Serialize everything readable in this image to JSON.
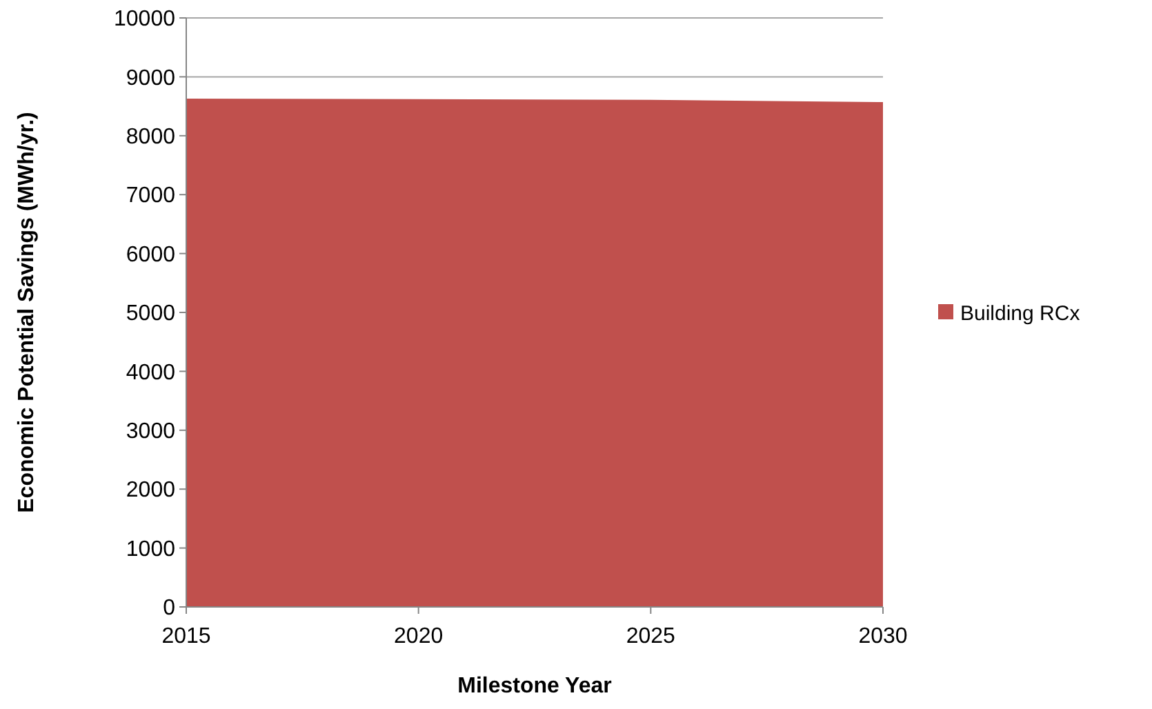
{
  "chart_data": {
    "type": "area",
    "xlabel": "Milestone Year",
    "ylabel": "Economic Potential Savings (MWh/yr.)",
    "x": [
      2015,
      2020,
      2025,
      2030
    ],
    "series": [
      {
        "name": "Building RCx",
        "color": "#c0504d",
        "values": [
          8630,
          8620,
          8610,
          8570
        ]
      }
    ],
    "xlim": [
      2015,
      2030
    ],
    "xticks": [
      2015,
      2020,
      2025,
      2030
    ],
    "ylim": [
      0,
      10000
    ],
    "yticks": [
      0,
      1000,
      2000,
      3000,
      4000,
      5000,
      6000,
      7000,
      8000,
      9000,
      10000
    ],
    "grid": "y",
    "legend": "right"
  }
}
